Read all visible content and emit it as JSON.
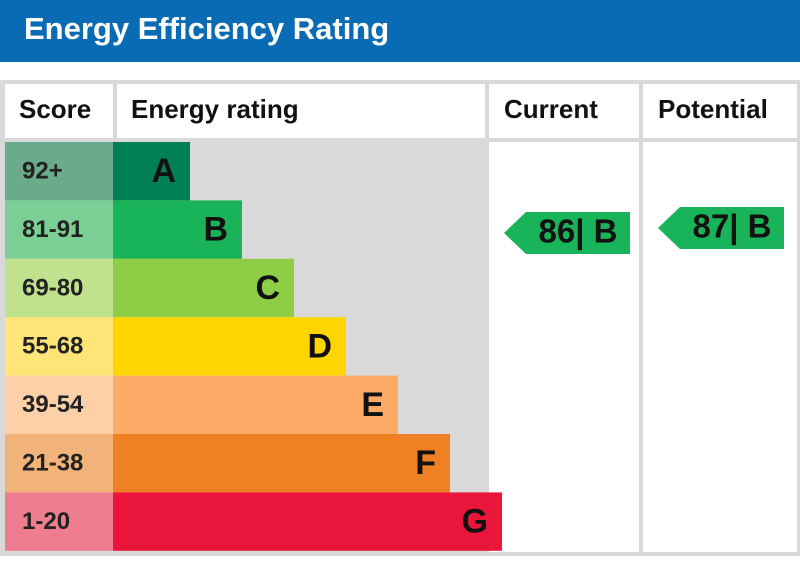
{
  "header": {
    "title": "Energy Efficiency Rating"
  },
  "table": {
    "columns": [
      "Score",
      "Energy rating",
      "Current",
      "Potential"
    ],
    "rows": [
      {
        "score": "92+",
        "rating": "A",
        "color": "#008054",
        "score_color": "#6aab8c"
      },
      {
        "score": "81-91",
        "rating": "B",
        "color": "#19b459",
        "score_color": "#7bcf94"
      },
      {
        "score": "69-80",
        "rating": "C",
        "color": "#8dce46",
        "score_color": "#c0e28f"
      },
      {
        "score": "55-68",
        "rating": "D",
        "color": "#ffd500",
        "score_color": "#ffe577"
      },
      {
        "score": "39-54",
        "rating": "E",
        "color": "#fcaa65",
        "score_color": "#fdd0a8"
      },
      {
        "score": "21-38",
        "rating": "F",
        "color": "#ef8023",
        "score_color": "#f2b37b"
      },
      {
        "score": "1-20",
        "rating": "G",
        "color": "#e9153b",
        "score_color": "#ee7d8f"
      }
    ],
    "current": "86| B",
    "potential": "87| B"
  }
}
